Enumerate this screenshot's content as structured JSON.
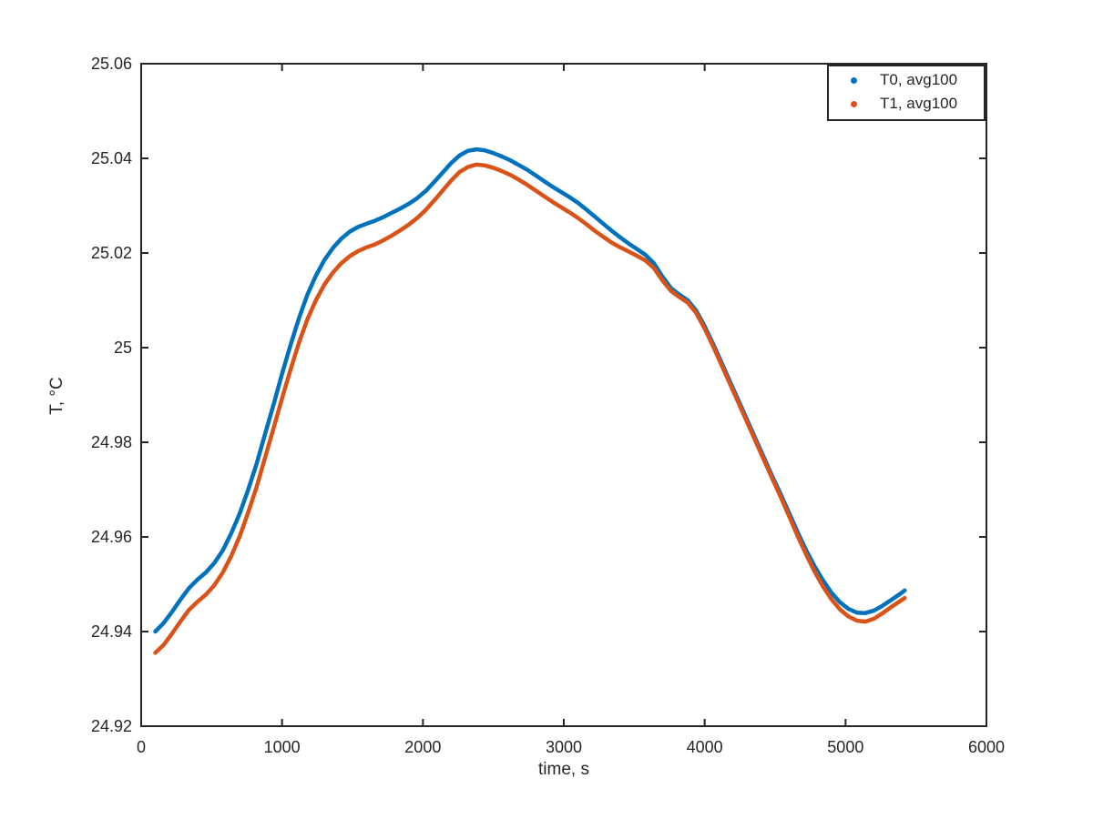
{
  "figure": {
    "background": "#ffffff",
    "axis_color": "#262626"
  },
  "chart_data": {
    "type": "line",
    "title": "",
    "xlabel": "time, s",
    "ylabel": "T, °C",
    "xlim": [
      0,
      6000
    ],
    "ylim": [
      24.92,
      25.06
    ],
    "grid": false,
    "box": true,
    "tick_direction": "in",
    "x_ticks": [
      0,
      1000,
      2000,
      3000,
      4000,
      5000,
      6000
    ],
    "x_tick_labels": [
      "0",
      "1000",
      "2000",
      "3000",
      "4000",
      "5000",
      "6000"
    ],
    "y_ticks": [
      24.92,
      24.94,
      24.96,
      24.98,
      25.0,
      25.02,
      25.04,
      25.06
    ],
    "y_tick_labels": [
      "24.92",
      "24.94",
      "24.96",
      "24.98",
      "25",
      "25.02",
      "25.04",
      "25.06"
    ],
    "legend": {
      "position": "top-right",
      "entries": [
        {
          "label": "T0, avg100",
          "color": "#0072BD",
          "marker": "dot"
        },
        {
          "label": "T1, avg100",
          "color": "#D95319",
          "marker": "dot"
        }
      ]
    },
    "series": [
      {
        "name": "T0, avg100",
        "color": "#0072BD",
        "marker": "dot",
        "points": [
          [
            100,
            24.94
          ],
          [
            160,
            24.9418
          ],
          [
            220,
            24.9442
          ],
          [
            280,
            24.9468
          ],
          [
            340,
            24.9492
          ],
          [
            400,
            24.951
          ],
          [
            460,
            24.9525
          ],
          [
            520,
            24.9545
          ],
          [
            580,
            24.9572
          ],
          [
            640,
            24.9608
          ],
          [
            700,
            24.965
          ],
          [
            760,
            24.97
          ],
          [
            820,
            24.9755
          ],
          [
            880,
            24.9818
          ],
          [
            940,
            24.988
          ],
          [
            1000,
            24.9945
          ],
          [
            1060,
            25.0005
          ],
          [
            1120,
            25.0062
          ],
          [
            1180,
            25.0112
          ],
          [
            1240,
            25.0152
          ],
          [
            1300,
            25.0185
          ],
          [
            1360,
            25.021
          ],
          [
            1420,
            25.023
          ],
          [
            1480,
            25.0245
          ],
          [
            1540,
            25.0255
          ],
          [
            1600,
            25.0262
          ],
          [
            1660,
            25.0268
          ],
          [
            1720,
            25.0276
          ],
          [
            1780,
            25.0285
          ],
          [
            1840,
            25.0294
          ],
          [
            1900,
            25.0304
          ],
          [
            1960,
            25.0316
          ],
          [
            2020,
            25.0331
          ],
          [
            2080,
            25.035
          ],
          [
            2140,
            25.037
          ],
          [
            2200,
            25.039
          ],
          [
            2260,
            25.0406
          ],
          [
            2320,
            25.0416
          ],
          [
            2380,
            25.0419
          ],
          [
            2440,
            25.0417
          ],
          [
            2500,
            25.0411
          ],
          [
            2560,
            25.0404
          ],
          [
            2620,
            25.0396
          ],
          [
            2680,
            25.0386
          ],
          [
            2740,
            25.0376
          ],
          [
            2800,
            25.0364
          ],
          [
            2860,
            25.0352
          ],
          [
            2920,
            25.034
          ],
          [
            2980,
            25.0329
          ],
          [
            3040,
            25.0318
          ],
          [
            3100,
            25.0306
          ],
          [
            3160,
            25.0292
          ],
          [
            3220,
            25.0277
          ],
          [
            3280,
            25.0262
          ],
          [
            3340,
            25.0247
          ],
          [
            3400,
            25.0233
          ],
          [
            3460,
            25.022
          ],
          [
            3520,
            25.0208
          ],
          [
            3580,
            25.0196
          ],
          [
            3640,
            25.0178
          ],
          [
            3700,
            25.015
          ],
          [
            3760,
            25.0126
          ],
          [
            3820,
            25.0112
          ],
          [
            3880,
            25.01
          ],
          [
            3940,
            25.0078
          ],
          [
            4000,
            25.0045
          ],
          [
            4060,
            25.0008
          ],
          [
            4120,
            24.9968
          ],
          [
            4180,
            24.9928
          ],
          [
            4240,
            24.9888
          ],
          [
            4300,
            24.9848
          ],
          [
            4360,
            24.9808
          ],
          [
            4420,
            24.9768
          ],
          [
            4480,
            24.9728
          ],
          [
            4540,
            24.969
          ],
          [
            4600,
            24.965
          ],
          [
            4660,
            24.961
          ],
          [
            4720,
            24.9572
          ],
          [
            4780,
            24.9538
          ],
          [
            4840,
            24.9508
          ],
          [
            4900,
            24.9482
          ],
          [
            4960,
            24.9462
          ],
          [
            5020,
            24.9448
          ],
          [
            5080,
            24.944
          ],
          [
            5140,
            24.9439
          ],
          [
            5200,
            24.9444
          ],
          [
            5260,
            24.9454
          ],
          [
            5320,
            24.9466
          ],
          [
            5380,
            24.9478
          ],
          [
            5420,
            24.9487
          ]
        ]
      },
      {
        "name": "T1, avg100",
        "color": "#D95319",
        "marker": "dot",
        "points": [
          [
            100,
            24.9355
          ],
          [
            160,
            24.9372
          ],
          [
            220,
            24.9396
          ],
          [
            280,
            24.9422
          ],
          [
            340,
            24.9446
          ],
          [
            400,
            24.9463
          ],
          [
            460,
            24.9478
          ],
          [
            520,
            24.9498
          ],
          [
            580,
            24.9525
          ],
          [
            640,
            24.956
          ],
          [
            700,
            24.9602
          ],
          [
            760,
            24.9652
          ],
          [
            820,
            24.9706
          ],
          [
            880,
            24.9768
          ],
          [
            940,
            24.983
          ],
          [
            1000,
            24.9893
          ],
          [
            1060,
            24.9953
          ],
          [
            1120,
            25.001
          ],
          [
            1180,
            25.006
          ],
          [
            1240,
            25.01
          ],
          [
            1300,
            25.0133
          ],
          [
            1360,
            25.0158
          ],
          [
            1420,
            25.0178
          ],
          [
            1480,
            25.0193
          ],
          [
            1540,
            25.0204
          ],
          [
            1600,
            25.0212
          ],
          [
            1660,
            25.0218
          ],
          [
            1720,
            25.0227
          ],
          [
            1780,
            25.0237
          ],
          [
            1840,
            25.0248
          ],
          [
            1900,
            25.026
          ],
          [
            1960,
            25.0274
          ],
          [
            2020,
            25.0291
          ],
          [
            2080,
            25.0311
          ],
          [
            2140,
            25.0332
          ],
          [
            2200,
            25.0353
          ],
          [
            2260,
            25.0371
          ],
          [
            2320,
            25.0382
          ],
          [
            2380,
            25.0387
          ],
          [
            2440,
            25.0385
          ],
          [
            2500,
            25.038
          ],
          [
            2560,
            25.0373
          ],
          [
            2620,
            25.0365
          ],
          [
            2680,
            25.0355
          ],
          [
            2740,
            25.0344
          ],
          [
            2800,
            25.0332
          ],
          [
            2860,
            25.032
          ],
          [
            2920,
            25.0308
          ],
          [
            2980,
            25.0297
          ],
          [
            3040,
            25.0286
          ],
          [
            3100,
            25.0274
          ],
          [
            3160,
            25.0261
          ],
          [
            3220,
            25.0247
          ],
          [
            3280,
            25.0234
          ],
          [
            3340,
            25.0222
          ],
          [
            3400,
            25.0212
          ],
          [
            3460,
            25.0203
          ],
          [
            3520,
            25.0194
          ],
          [
            3580,
            25.0184
          ],
          [
            3640,
            25.0168
          ],
          [
            3700,
            25.0142
          ],
          [
            3760,
            25.012
          ],
          [
            3820,
            25.0107
          ],
          [
            3880,
            25.0095
          ],
          [
            3940,
            25.0073
          ],
          [
            4000,
            25.004
          ],
          [
            4060,
            25.0003
          ],
          [
            4120,
            24.9963
          ],
          [
            4180,
            24.9923
          ],
          [
            4240,
            24.9883
          ],
          [
            4300,
            24.9843
          ],
          [
            4360,
            24.9803
          ],
          [
            4420,
            24.9763
          ],
          [
            4480,
            24.9723
          ],
          [
            4540,
            24.9684
          ],
          [
            4600,
            24.9643
          ],
          [
            4660,
            24.9602
          ],
          [
            4720,
            24.9563
          ],
          [
            4780,
            24.9527
          ],
          [
            4840,
            24.9495
          ],
          [
            4900,
            24.9468
          ],
          [
            4960,
            24.9447
          ],
          [
            5020,
            24.9432
          ],
          [
            5080,
            24.9423
          ],
          [
            5140,
            24.9421
          ],
          [
            5200,
            24.9427
          ],
          [
            5260,
            24.9438
          ],
          [
            5320,
            24.9451
          ],
          [
            5380,
            24.9463
          ],
          [
            5420,
            24.9471
          ]
        ]
      }
    ]
  }
}
